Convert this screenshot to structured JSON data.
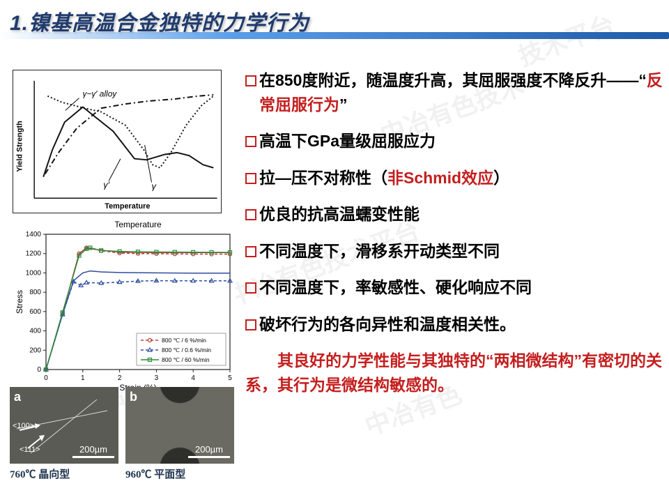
{
  "title": "1.镍基高温合金独特的力学行为",
  "watermarks": [
    "中冶有色技术平台",
    "中冶有色",
    "技术平台",
    "中冶有色技术"
  ],
  "schematic": {
    "ylabel": "Yield Strength",
    "xlabel": "Temperature",
    "annotations": {
      "alloy": "γ−γ′ alloy",
      "g1": "γ′",
      "g2": "γ"
    },
    "curves": {
      "solid": [
        [
          15,
          35
        ],
        [
          30,
          80
        ],
        [
          50,
          125
        ],
        [
          80,
          150
        ],
        [
          130,
          110
        ],
        [
          165,
          65
        ],
        [
          185,
          63
        ],
        [
          215,
          72
        ],
        [
          235,
          75
        ],
        [
          255,
          70
        ],
        [
          278,
          55
        ],
        [
          295,
          50
        ]
      ],
      "dashdot": [
        [
          18,
          40
        ],
        [
          40,
          75
        ],
        [
          70,
          115
        ],
        [
          110,
          148
        ],
        [
          150,
          155
        ],
        [
          190,
          160
        ],
        [
          230,
          163
        ],
        [
          270,
          168
        ],
        [
          295,
          170
        ]
      ],
      "dotted": [
        [
          22,
          168
        ],
        [
          45,
          158
        ],
        [
          75,
          150
        ],
        [
          110,
          142
        ],
        [
          150,
          120
        ],
        [
          180,
          80
        ],
        [
          195,
          55
        ],
        [
          207,
          50
        ],
        [
          225,
          75
        ],
        [
          250,
          120
        ],
        [
          275,
          152
        ],
        [
          295,
          168
        ]
      ]
    },
    "colors": {
      "stroke": "#111111",
      "bg": "#ffffff"
    }
  },
  "stress_chart": {
    "title": "Temperature",
    "xlabel": "Strain (%)",
    "ylabel": "Stress",
    "xlim": [
      0,
      5
    ],
    "ylim": [
      0,
      1400
    ],
    "xticks": [
      0,
      1,
      2,
      3,
      4,
      5
    ],
    "yticks": [
      0,
      200,
      400,
      600,
      800,
      1000,
      1200,
      1400
    ],
    "legend": [
      {
        "label": "800 ℃ / 6   %/min",
        "color": "#c43a3a",
        "dash": "4 3",
        "marker": "circle"
      },
      {
        "label": "800 ℃ / 0.6 %/min",
        "color": "#2e4da0",
        "dash": "4 3",
        "marker": "triangle"
      },
      {
        "label": "800 ℃ / 60  %/min",
        "color": "#2f8a3a",
        "dash": "none",
        "marker": "square"
      }
    ],
    "series": [
      {
        "color": "#c43a3a",
        "dash": "4 3",
        "marker": "circle",
        "pts": [
          [
            0,
            0
          ],
          [
            0.45,
            580
          ],
          [
            0.9,
            1200
          ],
          [
            1.1,
            1260
          ],
          [
            1.5,
            1230
          ],
          [
            2.0,
            1205
          ],
          [
            2.5,
            1200
          ],
          [
            3.0,
            1198
          ],
          [
            3.5,
            1196
          ],
          [
            4.0,
            1195
          ],
          [
            4.5,
            1194
          ],
          [
            5.0,
            1194
          ]
        ]
      },
      {
        "color": "#c43a3a",
        "dash": "none",
        "marker": "none",
        "pts": [
          [
            0,
            0
          ],
          [
            0.45,
            580
          ],
          [
            0.9,
            1200
          ],
          [
            1.1,
            1260
          ],
          [
            1.5,
            1235
          ],
          [
            2.0,
            1215
          ],
          [
            3.0,
            1210
          ],
          [
            4.0,
            1210
          ],
          [
            5.0,
            1210
          ]
        ]
      },
      {
        "color": "#2e4da0",
        "dash": "4 3",
        "marker": "triangle",
        "pts": [
          [
            0,
            0
          ],
          [
            0.45,
            570
          ],
          [
            0.75,
            910
          ],
          [
            0.95,
            870
          ],
          [
            1.1,
            900
          ],
          [
            1.5,
            895
          ],
          [
            2.0,
            905
          ],
          [
            2.5,
            915
          ],
          [
            3.0,
            920
          ],
          [
            3.5,
            918
          ],
          [
            4.0,
            918
          ],
          [
            4.5,
            918
          ],
          [
            5.0,
            918
          ]
        ]
      },
      {
        "color": "#2e4da0",
        "dash": "none",
        "marker": "none",
        "pts": [
          [
            0,
            0
          ],
          [
            0.45,
            570
          ],
          [
            0.75,
            920
          ],
          [
            1.0,
            1000
          ],
          [
            1.2,
            1020
          ],
          [
            1.5,
            1010
          ],
          [
            2.0,
            1004
          ],
          [
            3.0,
            1000
          ],
          [
            4.0,
            998
          ],
          [
            5.0,
            998
          ]
        ]
      },
      {
        "color": "#2f8a3a",
        "dash": "none",
        "marker": "square",
        "pts": [
          [
            0,
            0
          ],
          [
            0.45,
            590
          ],
          [
            0.9,
            1180
          ],
          [
            1.1,
            1250
          ],
          [
            1.2,
            1260
          ],
          [
            1.5,
            1232
          ],
          [
            2.0,
            1222
          ],
          [
            2.5,
            1218
          ],
          [
            3.0,
            1216
          ],
          [
            3.5,
            1215
          ],
          [
            4.0,
            1214
          ],
          [
            4.5,
            1213
          ],
          [
            5.0,
            1212
          ]
        ]
      }
    ],
    "colors": {
      "axis": "#222",
      "grid": "#c8c8c8",
      "bg": "#ffffff",
      "tick_font": 10,
      "label_font": 12
    }
  },
  "micrographs": {
    "a": {
      "letter": "a",
      "d100": "<100>",
      "d111": "<111>",
      "scale": "200µm",
      "caption": "760℃ 晶向型"
    },
    "b": {
      "letter": "b",
      "scale": "200µm",
      "caption": "960℃ 平面型"
    }
  },
  "bullets": {
    "b1a": "在850度附近，随温度升高，其屈服强度不降反升——“",
    "b1r": "反常屈服行为",
    "b1c": "”",
    "b2": "高温下GPa量级屈服应力",
    "b3a": "拉—压不对称性（",
    "b3r": "非Schmid效应",
    "b3c": "）",
    "b4": "优良的抗高温蠕变性能",
    "b5": "不同温度下，滑移系开动类型不同",
    "b6": "不同温度下，率敏感性、硬化响应不同",
    "b7": "破坏行为的各向异性和温度相关性。",
    "p1a": "其良好的力学性能与其独特的“",
    "p1r": "两相微结构",
    "p1b": "”有密切的关系，其行为是",
    "p1r2": "微结构敏感",
    "p1c": "的。"
  }
}
